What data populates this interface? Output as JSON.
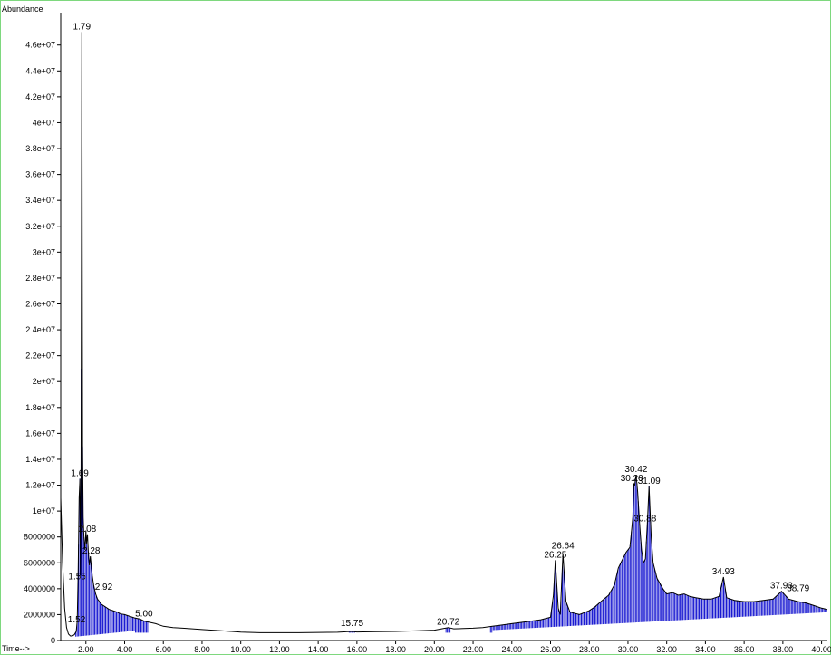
{
  "chart_data": {
    "type": "line",
    "ylabel": "Abundance",
    "xlabel": "Time-->",
    "xlim": [
      0.7,
      40.3
    ],
    "ylim": [
      0,
      48500000
    ],
    "x_ticks": [
      2,
      4,
      6,
      8,
      10,
      12,
      14,
      16,
      18,
      20,
      22,
      24,
      26,
      28,
      30,
      32,
      34,
      36,
      38,
      40
    ],
    "x_tick_labels": [
      "2.00",
      "4.00",
      "6.00",
      "8.00",
      "10.00",
      "12.00",
      "14.00",
      "16.00",
      "18.00",
      "20.00",
      "22.00",
      "24.00",
      "26.00",
      "28.00",
      "30.00",
      "32.00",
      "34.00",
      "36.00",
      "38.00",
      "40.00"
    ],
    "y_ticks": [
      0,
      2000000,
      4000000,
      6000000,
      8000000,
      10000000,
      12000000,
      14000000,
      16000000,
      18000000,
      20000000,
      22000000,
      24000000,
      26000000,
      28000000,
      30000000,
      32000000,
      34000000,
      36000000,
      38000000,
      40000000,
      42000000,
      44000000,
      46000000
    ],
    "y_tick_labels": [
      "0",
      "2000000",
      "4000000",
      "6000000",
      "8000000",
      "1e+07",
      "1.2e+07",
      "1.4e+07",
      "1.6e+07",
      "1.8e+07",
      "2e+07",
      "2.2e+07",
      "2.4e+07",
      "2.6e+07",
      "2.8e+07",
      "3e+07",
      "3.2e+07",
      "3.4e+07",
      "3.6e+07",
      "3.8e+07",
      "4e+07",
      "4.2e+07",
      "4.4e+07",
      "4.6e+07"
    ],
    "grid": false,
    "series": [
      {
        "color": "#000000",
        "x": [
          0.7,
          0.8,
          0.9,
          1.0,
          1.1,
          1.2,
          1.3,
          1.4,
          1.5,
          1.55,
          1.6,
          1.65,
          1.69,
          1.72,
          1.75,
          1.77,
          1.79,
          1.81,
          1.83,
          1.86,
          1.9,
          1.95,
          2.0,
          2.03,
          2.08,
          2.12,
          2.18,
          2.23,
          2.28,
          2.33,
          2.4,
          2.5,
          2.6,
          2.7,
          2.8,
          2.9,
          3.0,
          3.2,
          3.4,
          3.6,
          3.8,
          4.0,
          4.2,
          4.5,
          4.8,
          5.0,
          5.3,
          5.6,
          6.0,
          6.5,
          7.0,
          8.0,
          9.0,
          10.0,
          11.0,
          12.0,
          13.0,
          14.0,
          15.0,
          15.75,
          16.0,
          17.0,
          18.0,
          19.0,
          20.0,
          20.72,
          21.0,
          22.0,
          22.5,
          23.0,
          23.5,
          24.0,
          24.5,
          25.0,
          25.5,
          26.0,
          26.15,
          26.25,
          26.4,
          26.5,
          26.64,
          26.8,
          27.0,
          27.5,
          28.0,
          28.3,
          28.6,
          29.0,
          29.3,
          29.5,
          29.7,
          29.9,
          30.1,
          30.25,
          30.3,
          30.35,
          30.42,
          30.5,
          30.6,
          30.7,
          30.8,
          30.9,
          31.0,
          31.09,
          31.2,
          31.3,
          31.5,
          31.8,
          32.0,
          32.3,
          32.6,
          32.9,
          33.2,
          33.5,
          33.9,
          34.3,
          34.7,
          34.93,
          35.1,
          35.5,
          36.0,
          36.5,
          37.0,
          37.5,
          37.93,
          38.3,
          38.79,
          39.2,
          39.6,
          40.0,
          40.3
        ],
        "y": [
          11000000,
          6000000,
          2500000,
          1000000,
          500000,
          350000,
          350000,
          450000,
          700000,
          1500000,
          5000000,
          11000000,
          12500000,
          5000000,
          12000000,
          30000000,
          47000000,
          30000000,
          15000000,
          9500000,
          8000000,
          7000000,
          8500000,
          7500000,
          8200000,
          7000000,
          5800000,
          6500000,
          5700000,
          5000000,
          4300000,
          3600000,
          3200000,
          3000000,
          2800000,
          2700000,
          2600000,
          2400000,
          2300000,
          2200000,
          2050000,
          2000000,
          1900000,
          1750000,
          1650000,
          1500000,
          1400000,
          1300000,
          1100000,
          1000000,
          950000,
          850000,
          750000,
          650000,
          600000,
          600000,
          600000,
          620000,
          640000,
          700000,
          660000,
          680000,
          700000,
          740000,
          800000,
          1000000,
          900000,
          950000,
          1000000,
          1100000,
          1200000,
          1300000,
          1400000,
          1500000,
          1600000,
          1800000,
          3500000,
          6200000,
          2500000,
          2000000,
          6700000,
          3000000,
          2200000,
          2000000,
          2300000,
          2600000,
          3000000,
          3500000,
          4300000,
          5600000,
          6200000,
          6800000,
          7200000,
          9500000,
          12100000,
          12000000,
          12800000,
          11500000,
          9000000,
          7000000,
          6000000,
          6300000,
          9000000,
          11900000,
          8000000,
          6000000,
          4800000,
          4000000,
          3600000,
          3700000,
          3500000,
          3600000,
          3400000,
          3300000,
          3200000,
          3200000,
          3400000,
          4900000,
          3300000,
          3100000,
          3000000,
          3000000,
          3100000,
          3200000,
          3800000,
          3200000,
          3000000,
          2900000,
          2700000,
          2500000,
          2400000
        ]
      }
    ],
    "peak_labels": [
      {
        "text": "1.79",
        "x": 1.79,
        "y": 47000000
      },
      {
        "text": "1.69",
        "x": 1.69,
        "y": 12500000
      },
      {
        "text": "2.08",
        "x": 2.08,
        "y": 8200000
      },
      {
        "text": "2.28",
        "x": 2.28,
        "y": 6500000
      },
      {
        "text": "1.52",
        "x": 1.52,
        "y": 1200000
      },
      {
        "text": "1.55",
        "x": 1.55,
        "y": 4500000
      },
      {
        "text": "2.92",
        "x": 2.92,
        "y": 3700000
      },
      {
        "text": "5.00",
        "x": 5.0,
        "y": 1650000
      },
      {
        "text": "15.75",
        "x": 15.75,
        "y": 900000
      },
      {
        "text": "20.72",
        "x": 20.72,
        "y": 1000000
      },
      {
        "text": "26.25",
        "x": 26.25,
        "y": 6200000
      },
      {
        "text": "26.64",
        "x": 26.64,
        "y": 6900000
      },
      {
        "text": "30.42",
        "x": 30.42,
        "y": 12800000
      },
      {
        "text": "30.20",
        "x": 30.2,
        "y": 12100000
      },
      {
        "text": "31.09",
        "x": 31.09,
        "y": 11900000
      },
      {
        "text": "30.88",
        "x": 30.88,
        "y": 9000000
      },
      {
        "text": "34.93",
        "x": 34.93,
        "y": 4900000
      },
      {
        "text": "37.93",
        "x": 37.93,
        "y": 3800000
      },
      {
        "text": "38.79",
        "x": 38.79,
        "y": 3600000
      }
    ],
    "integration_fill_color": "#0000cc"
  }
}
